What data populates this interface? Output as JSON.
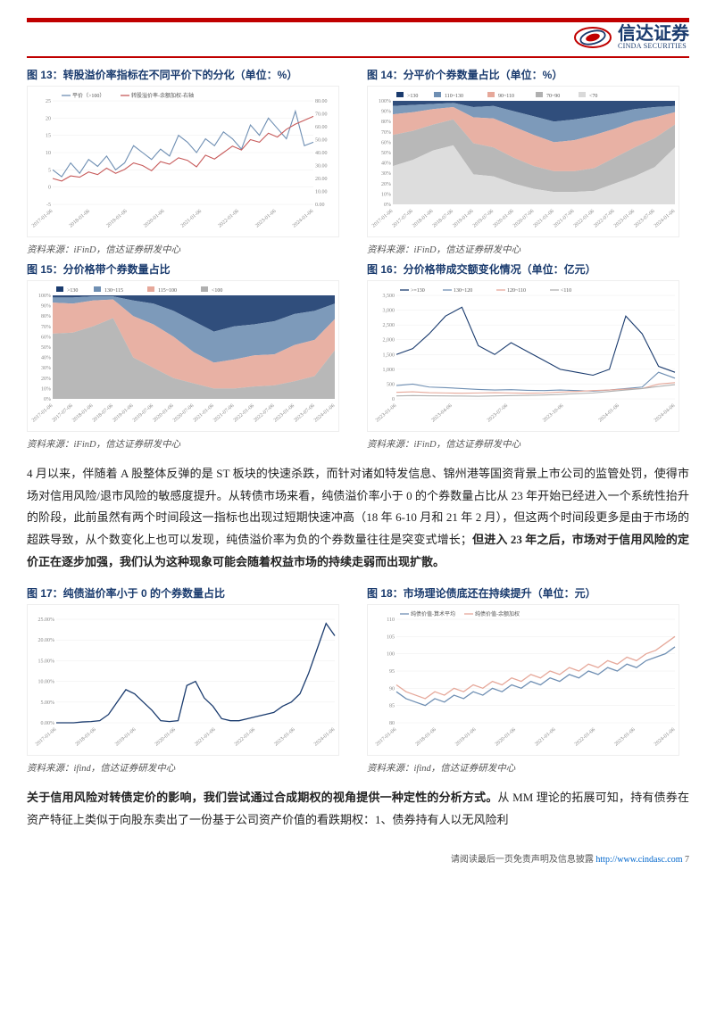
{
  "brand": {
    "name_ch": "信达证券",
    "name_en": "CINDA SECURITIES"
  },
  "charts": {
    "c13": {
      "title": "图 13：转股溢价率指标在不同平价下的分化（单位：%）",
      "type": "line-dual-axis",
      "x_labels": [
        "2017-01-06",
        "2018-01-06",
        "2019-01-06",
        "2020-01-06",
        "2021-01-06",
        "2022-01-06",
        "2023-01-06",
        "2024-01-06"
      ],
      "legend": [
        "平价（>100）",
        "转股溢价率-余额加权-右轴"
      ],
      "colors": [
        "#6f8fb3",
        "#c75a5a"
      ],
      "y_left": {
        "lim": [
          -5,
          25
        ],
        "ticks": [
          -5,
          0,
          5,
          10,
          15,
          20,
          25
        ]
      },
      "y_right": {
        "lim": [
          0,
          80
        ],
        "ticks": [
          0,
          10,
          20,
          30,
          40,
          50,
          60,
          70,
          80
        ]
      },
      "series_left": [
        5,
        3,
        7,
        4,
        8,
        6,
        9,
        5,
        7,
        12,
        10,
        8,
        11,
        9,
        15,
        13,
        10,
        14,
        12,
        16,
        14,
        11,
        18,
        15,
        20,
        17,
        14,
        22,
        12,
        13
      ],
      "series_right": [
        20,
        18,
        22,
        21,
        25,
        23,
        28,
        24,
        27,
        32,
        30,
        26,
        33,
        31,
        36,
        34,
        29,
        38,
        35,
        40,
        45,
        42,
        50,
        48,
        55,
        52,
        58,
        62,
        65,
        68
      ],
      "background_color": "#ffffff",
      "grid_color": "#eeeeee",
      "line_width": 1.1
    },
    "c14": {
      "title": "图 14：分平价个券数量占比（单位：%）",
      "type": "stacked-area",
      "x_labels": [
        "2017-01-06",
        "2017-07-06",
        "2018-01-06",
        "2018-07-06",
        "2019-01-06",
        "2019-07-06",
        "2020-01-06",
        "2020-07-06",
        "2021-01-06",
        "2021-07-06",
        "2022-01-06",
        "2022-07-06",
        "2023-01-06",
        "2023-07-06",
        "2024-01-06"
      ],
      "legend": [
        ">130",
        "110~130",
        "90~110",
        "70~90",
        "<70"
      ],
      "colors": [
        "#1a3b6e",
        "#6f8fb3",
        "#e6a89a",
        "#b0b0b0",
        "#d9d9d9"
      ],
      "y": {
        "lim": [
          0,
          100
        ],
        "ticks": [
          0,
          10,
          20,
          30,
          40,
          50,
          60,
          70,
          80,
          90,
          100
        ]
      },
      "stack": [
        [
          5,
          4,
          3,
          2,
          6,
          5,
          10,
          15,
          20,
          18,
          15,
          12,
          8,
          6,
          5
        ],
        [
          8,
          7,
          5,
          4,
          10,
          12,
          15,
          18,
          20,
          20,
          18,
          15,
          12,
          10,
          6
        ],
        [
          20,
          18,
          15,
          12,
          25,
          28,
          30,
          30,
          28,
          30,
          32,
          28,
          25,
          20,
          12
        ],
        [
          30,
          28,
          25,
          25,
          30,
          28,
          25,
          22,
          20,
          20,
          22,
          25,
          28,
          28,
          22
        ],
        [
          37,
          43,
          52,
          57,
          29,
          27,
          20,
          15,
          12,
          12,
          13,
          20,
          27,
          36,
          55
        ]
      ],
      "background_color": "#ffffff"
    },
    "c15": {
      "title": "图 15：分价格带个券数量占比",
      "type": "stacked-area",
      "x_labels": [
        "2017-01-06",
        "2017-07-06",
        "2018-01-06",
        "2018-07-06",
        "2019-01-06",
        "2019-07-06",
        "2020-01-06",
        "2020-07-06",
        "2021-01-06",
        "2021-07-06",
        "2022-01-06",
        "2022-07-06",
        "2023-01-06",
        "2023-07-06",
        "2024-01-06"
      ],
      "legend": [
        ">130",
        "130~115",
        "115~100",
        "<100"
      ],
      "colors": [
        "#1a3b6e",
        "#6f8fb3",
        "#e6a89a",
        "#b0b0b0"
      ],
      "y": {
        "lim": [
          0,
          100
        ],
        "ticks": [
          0,
          10,
          20,
          30,
          40,
          50,
          60,
          70,
          80,
          90,
          100
        ]
      },
      "stack": [
        [
          2,
          2,
          1,
          1,
          5,
          8,
          15,
          25,
          35,
          30,
          28,
          25,
          18,
          15,
          8
        ],
        [
          5,
          6,
          4,
          3,
          15,
          20,
          25,
          30,
          30,
          32,
          30,
          32,
          30,
          28,
          15
        ],
        [
          30,
          28,
          25,
          18,
          40,
          42,
          40,
          30,
          25,
          28,
          30,
          30,
          35,
          35,
          30
        ],
        [
          63,
          64,
          70,
          78,
          40,
          30,
          20,
          15,
          10,
          10,
          12,
          13,
          17,
          22,
          47
        ]
      ],
      "background_color": "#ffffff"
    },
    "c16": {
      "title": "图 16：分价格带成交额变化情况（单位：亿元）",
      "type": "multi-line",
      "x_labels": [
        "2023-01-06",
        "2023-04-06",
        "2023-07-06",
        "2023-10-06",
        "2024-01-06",
        "2024-04-06"
      ],
      "legend": [
        ">=130",
        "130~120",
        "120~110",
        "<110"
      ],
      "colors": [
        "#1a3b6e",
        "#6f8fb3",
        "#e6a89a",
        "#b0b0b0"
      ],
      "y": {
        "lim": [
          0,
          3500
        ],
        "ticks": [
          0,
          500,
          1000,
          1500,
          2000,
          2500,
          3000,
          3500
        ]
      },
      "series": [
        [
          1500,
          1700,
          2200,
          2800,
          3100,
          1800,
          1500,
          1900,
          1600,
          1300,
          1000,
          900,
          800,
          1000,
          2800,
          2200,
          1100,
          900
        ],
        [
          450,
          500,
          400,
          380,
          350,
          320,
          300,
          310,
          290,
          280,
          300,
          280,
          260,
          300,
          350,
          400,
          900,
          700
        ],
        [
          220,
          240,
          210,
          200,
          190,
          200,
          210,
          200,
          190,
          200,
          230,
          250,
          280,
          300,
          330,
          350,
          500,
          550
        ],
        [
          100,
          110,
          105,
          100,
          95,
          90,
          100,
          110,
          120,
          130,
          150,
          180,
          200,
          250,
          300,
          350,
          420,
          480
        ]
      ],
      "line_width": 1.1
    },
    "c17": {
      "title": "图 17：纯债溢价率小于 0 的个券数量占比",
      "type": "line",
      "x_labels": [
        "2017-01-06",
        "2018-01-06",
        "2019-01-06",
        "2020-01-06",
        "2021-01-06",
        "2022-01-06",
        "2023-01-06",
        "2024-01-06"
      ],
      "legend": [],
      "colors": [
        "#1a3b6e"
      ],
      "y": {
        "lim": [
          0,
          25
        ],
        "ticks": [
          0,
          5,
          10,
          15,
          20,
          25
        ],
        "tick_format": "percent"
      },
      "series": [
        0,
        0,
        0,
        0.2,
        0.3,
        0.5,
        2,
        5,
        8,
        7,
        5,
        3,
        0.5,
        0.3,
        0.5,
        9,
        10,
        6,
        4,
        1,
        0.5,
        0.5,
        1,
        1.5,
        2,
        2.5,
        4,
        5,
        7,
        12,
        18,
        24,
        21
      ],
      "line_width": 1.3
    },
    "c18": {
      "title": "图 18：市场理论债底还在持续提升（单位：元）",
      "type": "multi-line",
      "x_labels": [
        "2017-01-06",
        "2018-01-06",
        "2019-01-06",
        "2020-01-06",
        "2021-01-06",
        "2022-01-06",
        "2023-01-06",
        "2024-01-06"
      ],
      "legend": [
        "纯债价值-算术平均",
        "纯债价值-余额加权"
      ],
      "colors": [
        "#6f8fb3",
        "#e6a89a"
      ],
      "y": {
        "lim": [
          80,
          110
        ],
        "ticks": [
          80,
          85,
          90,
          95,
          100,
          105,
          110
        ]
      },
      "series": [
        [
          89,
          87,
          86,
          85,
          87,
          86,
          88,
          87,
          89,
          88,
          90,
          89,
          91,
          90,
          92,
          91,
          93,
          92,
          94,
          93,
          95,
          94,
          96,
          95,
          97,
          96,
          98,
          99,
          100,
          102
        ],
        [
          91,
          89,
          88,
          87,
          89,
          88,
          90,
          89,
          91,
          90,
          92,
          91,
          93,
          92,
          94,
          93,
          95,
          94,
          96,
          95,
          97,
          96,
          98,
          97,
          99,
          98,
          100,
          101,
          103,
          105
        ]
      ],
      "line_width": 1.3
    }
  },
  "source": "资料来源：iFinD，信达证券研发中心",
  "source_lower": "资料来源：ifind，信达证券研发中心",
  "paragraph1": "4 月以来，伴随着 A 股整体反弹的是 ST 板块的快速杀跌，而针对诸如特发信息、锦州港等国资背景上市公司的监管处罚，使得市场对信用风险/退市风险的敏感度提升。从转债市场来看，纯债溢价率小于 0 的个券数量占比从 23 年开始已经进入一个系统性抬升的阶段，此前虽然有两个时间段这一指标也出现过短期快速冲高（18 年 6-10 月和 21 年 2 月），但这两个时间段更多是由于市场的超跌导致，从个数变化上也可以发现，纯债溢价率为负的个券数量往往是突变式增长；",
  "paragraph1_bold": "但进入 23 年之后，市场对于信用风险的定价正在逐步加强，我们认为这种现象可能会随着权益市场的持续走弱而出现扩散。",
  "paragraph2_bold": "关于信用风险对转债定价的影响，我们尝试通过合成期权的视角提供一种定性的分析方式。",
  "paragraph2": "从 MM 理论的拓展可知，持有债券在资产特征上类似于向股东卖出了一份基于公司资产价值的看跌期权：1、债券持有人以无风险利",
  "footer": {
    "text": "请阅读最后一页免责声明及信息披露 ",
    "url": "http://www.cindasc.com",
    "page": "  7"
  }
}
